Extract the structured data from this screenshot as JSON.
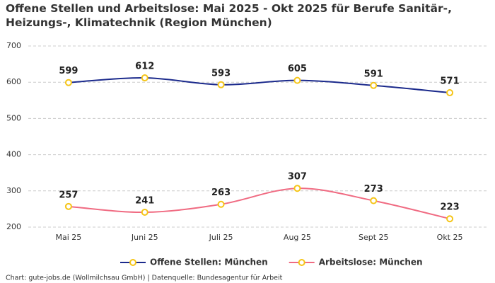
{
  "chart_data": {
    "type": "line",
    "title": "Offene Stellen und Arbeitslose: Mai 2025 - Okt 2025 für Berufe Sanitär-, Heizungs-, Klimatechnik (Region München)",
    "categories": [
      "Mai 25",
      "Juni 25",
      "Juli 25",
      "Aug 25",
      "Sept 25",
      "Okt 25"
    ],
    "series": [
      {
        "name": "Offene Stellen: München",
        "color": "#1b2a8c",
        "values": [
          599,
          612,
          593,
          605,
          591,
          571
        ]
      },
      {
        "name": "Arbeitslose: München",
        "color": "#f06b82",
        "values": [
          257,
          241,
          263,
          307,
          273,
          223
        ]
      }
    ],
    "marker_color": "#f5c518",
    "ylim": [
      200,
      700
    ],
    "yticks": [
      200,
      300,
      400,
      500,
      600,
      700
    ],
    "grid": true,
    "legend": "bottom",
    "footer": "Chart: gute-jobs.de (Wollmilchsau GmbH) | Datenquelle: Bundesagentur für Arbeit"
  }
}
